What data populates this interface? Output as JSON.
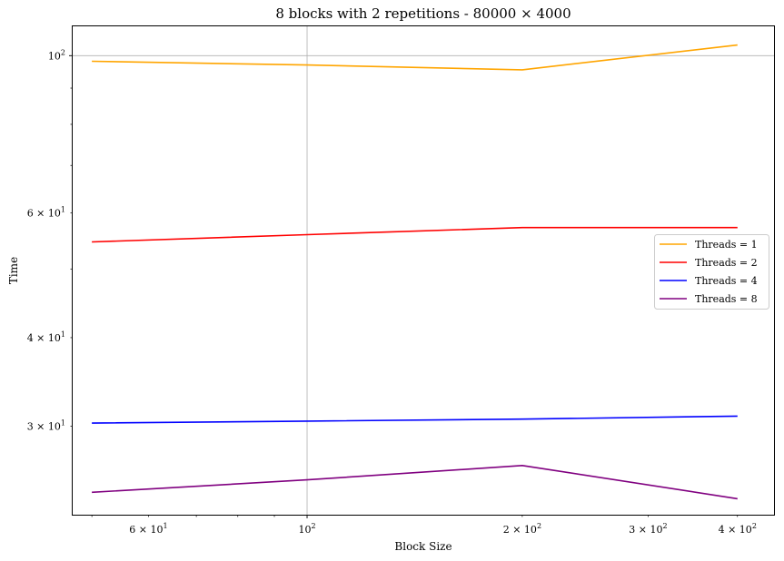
{
  "chart_data": {
    "type": "line",
    "title": "8 blocks with 2 repetitions - 80000 × 4000",
    "xlabel": "Block Size",
    "ylabel": "Time",
    "xscale": "log",
    "yscale": "log",
    "xlim": [
      47,
      450
    ],
    "ylim": [
      22.5,
      110
    ],
    "x": [
      50,
      100,
      200,
      400
    ],
    "grid": "major gridlines only (x = 10², y = 10²)",
    "legend_position": "center-right",
    "x_major_ticks": [
      {
        "value": 100,
        "label": "10²",
        "mant": "10",
        "exp": "2"
      }
    ],
    "x_minor_ticks": [
      {
        "value": 50,
        "label": ""
      },
      {
        "value": 60,
        "label": "6 × 10¹",
        "mant": "6 × 10",
        "exp": "1"
      },
      {
        "value": 70,
        "label": ""
      },
      {
        "value": 80,
        "label": ""
      },
      {
        "value": 90,
        "label": ""
      },
      {
        "value": 200,
        "label": "2 × 10²",
        "mant": "2 × 10",
        "exp": "2"
      },
      {
        "value": 300,
        "label": "3 × 10²",
        "mant": "3 × 10",
        "exp": "2"
      },
      {
        "value": 400,
        "label": "4 × 10²",
        "mant": "4 × 10",
        "exp": "2"
      }
    ],
    "y_major_ticks": [
      {
        "value": 100,
        "label": "10²",
        "mant": "10",
        "exp": "2"
      }
    ],
    "y_minor_ticks": [
      {
        "value": 30,
        "label": "3 × 10¹",
        "mant": "3 × 10",
        "exp": "1"
      },
      {
        "value": 40,
        "label": "4 × 10¹",
        "mant": "4 × 10",
        "exp": "1"
      },
      {
        "value": 50,
        "label": ""
      },
      {
        "value": 60,
        "label": "6 × 10¹",
        "mant": "6 × 10",
        "exp": "1"
      },
      {
        "value": 70,
        "label": ""
      },
      {
        "value": 80,
        "label": ""
      },
      {
        "value": 90,
        "label": ""
      }
    ],
    "series": [
      {
        "name": "Threads = 1",
        "color": "#ffa500",
        "values": [
          98.2,
          97.0,
          95.5,
          103.5
        ]
      },
      {
        "name": "Threads = 2",
        "color": "#ff0000",
        "values": [
          54.6,
          55.9,
          57.2,
          57.2
        ]
      },
      {
        "name": "Threads = 4",
        "color": "#0000ff",
        "values": [
          30.3,
          30.5,
          30.7,
          31.0
        ]
      },
      {
        "name": "Threads = 8",
        "color": "#800080",
        "values": [
          24.2,
          25.2,
          26.4,
          23.7
        ]
      }
    ]
  }
}
